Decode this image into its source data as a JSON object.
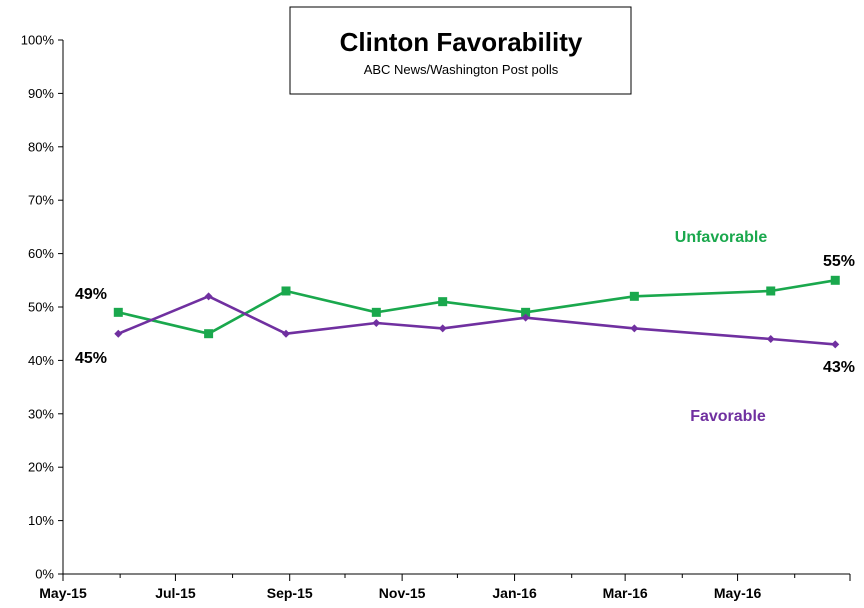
{
  "chart_data": {
    "type": "line",
    "title": "Clinton Favorability",
    "subtitle": "ABC News/Washington  Post polls",
    "ylim": [
      0,
      100
    ],
    "y_ticks": [
      "0%",
      "10%",
      "20%",
      "30%",
      "40%",
      "50%",
      "60%",
      "70%",
      "80%",
      "90%",
      "100%"
    ],
    "x_tick_labels": [
      "May-15",
      "Jul-15",
      "Sep-15",
      "Nov-15",
      "Jan-16",
      "Mar-16",
      "May-16"
    ],
    "grid": false,
    "series": [
      {
        "name": "Unfavorable",
        "color": "#1aa84d",
        "marker": "square",
        "x": [
          "2015-05-31",
          "2015-07-19",
          "2015-08-30",
          "2015-10-18",
          "2015-11-23",
          "2016-01-07",
          "2016-03-06",
          "2016-05-19",
          "2016-06-23"
        ],
        "values": [
          49,
          45,
          53,
          49,
          51,
          49,
          52,
          53,
          55
        ]
      },
      {
        "name": "Favorable",
        "color": "#7030a0",
        "marker": "diamond",
        "x": [
          "2015-05-31",
          "2015-07-19",
          "2015-08-30",
          "2015-10-18",
          "2015-11-23",
          "2016-01-07",
          "2016-03-06",
          "2016-05-19",
          "2016-06-23"
        ],
        "values": [
          45,
          52,
          45,
          47,
          46,
          48,
          46,
          44,
          43
        ]
      }
    ],
    "data_labels": [
      {
        "series": "Unfavorable",
        "point": "first",
        "text": "49%"
      },
      {
        "series": "Favorable",
        "point": "first",
        "text": "45%"
      },
      {
        "series": "Unfavorable",
        "point": "last",
        "text": "55%"
      },
      {
        "series": "Favorable",
        "point": "last",
        "text": "43%"
      }
    ]
  }
}
